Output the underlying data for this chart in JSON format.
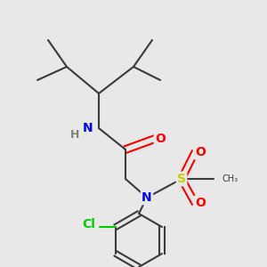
{
  "background_color": "#e8e8e8",
  "bond_color": "#3a3a3a",
  "atom_colors": {
    "N": "#0000ff",
    "O": "#ff0000",
    "S": "#cccc00",
    "Cl": "#00cc00",
    "H": "#808080",
    "C": "#3a3a3a"
  },
  "figsize": [
    3.0,
    3.0
  ],
  "dpi": 100
}
